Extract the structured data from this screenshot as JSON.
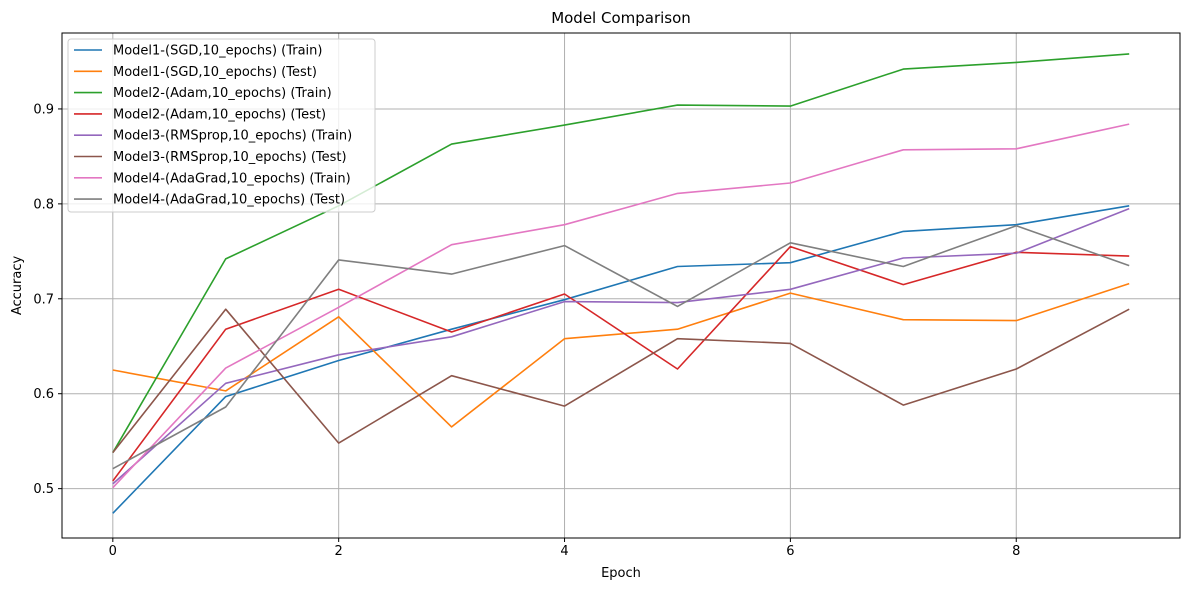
{
  "chart_data": {
    "type": "line",
    "title": "Model Comparison",
    "xlabel": "Epoch",
    "ylabel": "Accuracy",
    "x": [
      0,
      1,
      2,
      3,
      4,
      5,
      6,
      7,
      8,
      9
    ],
    "xlim": [
      -0.45,
      9.45
    ],
    "ylim": [
      0.448,
      0.98
    ],
    "xticks": [
      0,
      2,
      4,
      6,
      8
    ],
    "yticks": [
      0.5,
      0.6,
      0.7,
      0.8,
      0.9
    ],
    "grid": true,
    "legend_position": "top-left",
    "series": [
      {
        "name": "Model1-(SGD,10_epochs) (Train)",
        "color": "#1f77b4",
        "values": [
          0.474,
          0.597,
          0.635,
          0.668,
          0.699,
          0.734,
          0.738,
          0.771,
          0.778,
          0.798
        ]
      },
      {
        "name": "Model1-(SGD,10_epochs) (Test)",
        "color": "#ff7f0e",
        "values": [
          0.625,
          0.603,
          0.681,
          0.565,
          0.658,
          0.668,
          0.706,
          0.678,
          0.677,
          0.716
        ]
      },
      {
        "name": "Model2-(Adam,10_epochs) (Train)",
        "color": "#2ca02c",
        "values": [
          0.538,
          0.742,
          0.798,
          0.863,
          0.883,
          0.904,
          0.903,
          0.942,
          0.949,
          0.958
        ]
      },
      {
        "name": "Model2-(Adam,10_epochs) (Test)",
        "color": "#d62728",
        "values": [
          0.508,
          0.668,
          0.71,
          0.665,
          0.705,
          0.626,
          0.755,
          0.715,
          0.749,
          0.745
        ]
      },
      {
        "name": "Model3-(RMSprop,10_epochs) (Train)",
        "color": "#9467bd",
        "values": [
          0.505,
          0.611,
          0.641,
          0.66,
          0.697,
          0.696,
          0.71,
          0.743,
          0.748,
          0.795
        ]
      },
      {
        "name": "Model3-(RMSprop,10_epochs) (Test)",
        "color": "#8c564b",
        "values": [
          0.538,
          0.689,
          0.548,
          0.619,
          0.587,
          0.658,
          0.653,
          0.588,
          0.626,
          0.689
        ]
      },
      {
        "name": "Model4-(AdaGrad,10_epochs) (Train)",
        "color": "#e377c2",
        "values": [
          0.501,
          0.627,
          0.691,
          0.757,
          0.778,
          0.811,
          0.822,
          0.857,
          0.858,
          0.884
        ]
      },
      {
        "name": "Model4-(AdaGrad,10_epochs) (Test)",
        "color": "#7f7f7f",
        "values": [
          0.521,
          0.586,
          0.741,
          0.726,
          0.756,
          0.692,
          0.759,
          0.734,
          0.777,
          0.735
        ]
      }
    ]
  }
}
